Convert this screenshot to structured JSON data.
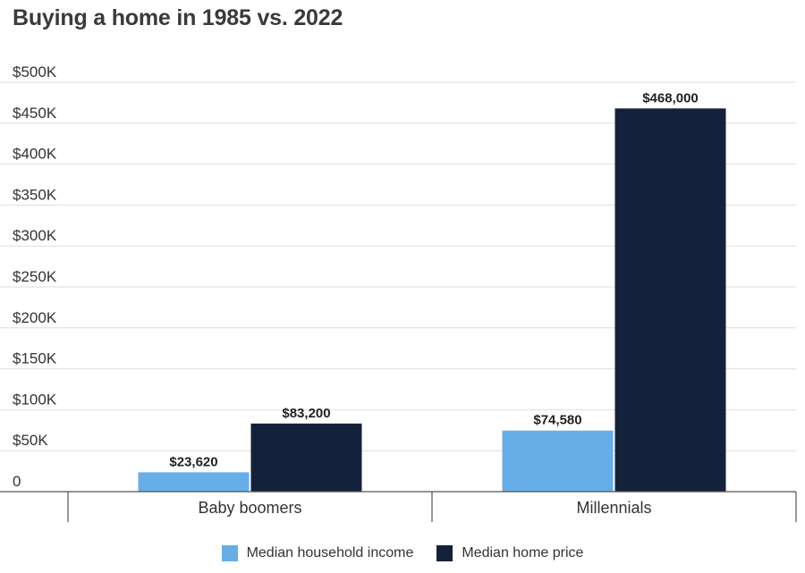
{
  "chart_data": {
    "type": "bar",
    "title": "Buying a home in 1985 vs. 2022",
    "categories": [
      "Baby boomers",
      "Millennials"
    ],
    "series": [
      {
        "name": "Median household income",
        "color": "#65aee8",
        "values": [
          23620,
          74580
        ],
        "labels": [
          "$23,620",
          "$74,580"
        ]
      },
      {
        "name": "Median home price",
        "color": "#14213a",
        "values": [
          83200,
          468000
        ],
        "labels": [
          "$83,200",
          "$468,000"
        ]
      }
    ],
    "ylim": [
      0,
      500000
    ],
    "yticks": [
      0,
      50000,
      100000,
      150000,
      200000,
      250000,
      300000,
      350000,
      400000,
      450000,
      500000
    ],
    "ytick_labels": [
      "0",
      "$50K",
      "$100K",
      "$150K",
      "$200K",
      "$250K",
      "$300K",
      "$350K",
      "$400K",
      "$450K",
      "$500K"
    ],
    "xlabel": "",
    "ylabel": "",
    "grid": true,
    "legend_position": "bottom"
  }
}
